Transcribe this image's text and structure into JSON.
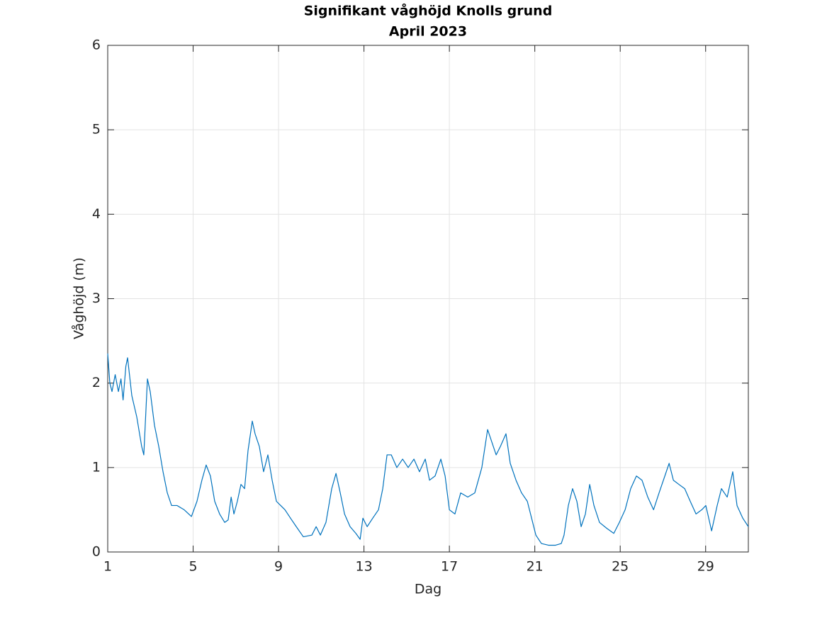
{
  "chart_data": {
    "type": "line",
    "title": "Signifikant våghöjd Knolls grund",
    "subtitle": "April 2023",
    "x_label": "Dag",
    "y_label": "Våghöjd (m)",
    "xlim": [
      1,
      31
    ],
    "xticks": [
      1,
      5,
      9,
      13,
      17,
      21,
      25,
      29
    ],
    "ylim": [
      0,
      6
    ],
    "yticks": [
      0,
      1,
      2,
      3,
      4,
      5,
      6
    ],
    "grid": true,
    "color": "#0072bd",
    "x": [
      1.0,
      1.1,
      1.2,
      1.35,
      1.5,
      1.62,
      1.72,
      1.85,
      1.93,
      2.13,
      2.36,
      2.59,
      2.69,
      2.86,
      2.99,
      3.19,
      3.39,
      3.59,
      3.79,
      3.99,
      4.25,
      4.58,
      4.92,
      5.18,
      5.41,
      5.61,
      5.81,
      6.01,
      6.24,
      6.48,
      6.64,
      6.78,
      6.91,
      7.07,
      7.24,
      7.41,
      7.57,
      7.77,
      7.9,
      8.1,
      8.3,
      8.5,
      8.7,
      8.9,
      9.1,
      9.3,
      9.56,
      9.83,
      10.16,
      10.56,
      10.76,
      10.96,
      11.22,
      11.49,
      11.69,
      11.89,
      12.09,
      12.35,
      12.62,
      12.82,
      12.95,
      13.15,
      13.41,
      13.68,
      13.88,
      14.08,
      14.28,
      14.54,
      14.81,
      15.07,
      15.34,
      15.6,
      15.87,
      16.07,
      16.33,
      16.6,
      16.8,
      17.0,
      17.26,
      17.53,
      17.86,
      18.19,
      18.52,
      18.79,
      18.99,
      19.19,
      19.39,
      19.65,
      19.85,
      20.12,
      20.38,
      20.65,
      20.85,
      21.05,
      21.31,
      21.64,
      21.97,
      22.24,
      22.37,
      22.57,
      22.77,
      22.97,
      23.17,
      23.37,
      23.57,
      23.77,
      24.03,
      24.37,
      24.7,
      24.96,
      25.23,
      25.49,
      25.76,
      26.02,
      26.29,
      26.56,
      26.82,
      27.09,
      27.29,
      27.49,
      27.75,
      28.02,
      28.28,
      28.55,
      28.82,
      29.01,
      29.28,
      29.54,
      29.74,
      30.01,
      30.27,
      30.47,
      30.74,
      31.0
    ],
    "values": [
      2.35,
      2.0,
      1.9,
      2.1,
      1.9,
      2.05,
      1.8,
      2.2,
      2.3,
      1.85,
      1.6,
      1.25,
      1.15,
      2.05,
      1.9,
      1.5,
      1.25,
      0.95,
      0.7,
      0.55,
      0.55,
      0.5,
      0.42,
      0.6,
      0.85,
      1.03,
      0.9,
      0.6,
      0.45,
      0.35,
      0.38,
      0.65,
      0.45,
      0.6,
      0.8,
      0.75,
      1.2,
      1.55,
      1.4,
      1.25,
      0.95,
      1.15,
      0.85,
      0.6,
      0.55,
      0.5,
      0.4,
      0.3,
      0.18,
      0.2,
      0.3,
      0.2,
      0.35,
      0.75,
      0.93,
      0.7,
      0.45,
      0.3,
      0.22,
      0.15,
      0.4,
      0.3,
      0.4,
      0.5,
      0.75,
      1.15,
      1.15,
      1.0,
      1.1,
      1.0,
      1.1,
      0.95,
      1.1,
      0.85,
      0.9,
      1.1,
      0.9,
      0.5,
      0.45,
      0.7,
      0.65,
      0.7,
      1.0,
      1.45,
      1.3,
      1.15,
      1.25,
      1.4,
      1.05,
      0.85,
      0.7,
      0.6,
      0.4,
      0.2,
      0.1,
      0.08,
      0.08,
      0.1,
      0.2,
      0.55,
      0.75,
      0.6,
      0.3,
      0.45,
      0.8,
      0.55,
      0.35,
      0.28,
      0.22,
      0.35,
      0.5,
      0.75,
      0.9,
      0.85,
      0.65,
      0.5,
      0.7,
      0.9,
      1.05,
      0.85,
      0.8,
      0.75,
      0.6,
      0.45,
      0.5,
      0.55,
      0.25,
      0.55,
      0.75,
      0.65,
      0.95,
      0.55,
      0.4,
      0.3
    ]
  }
}
